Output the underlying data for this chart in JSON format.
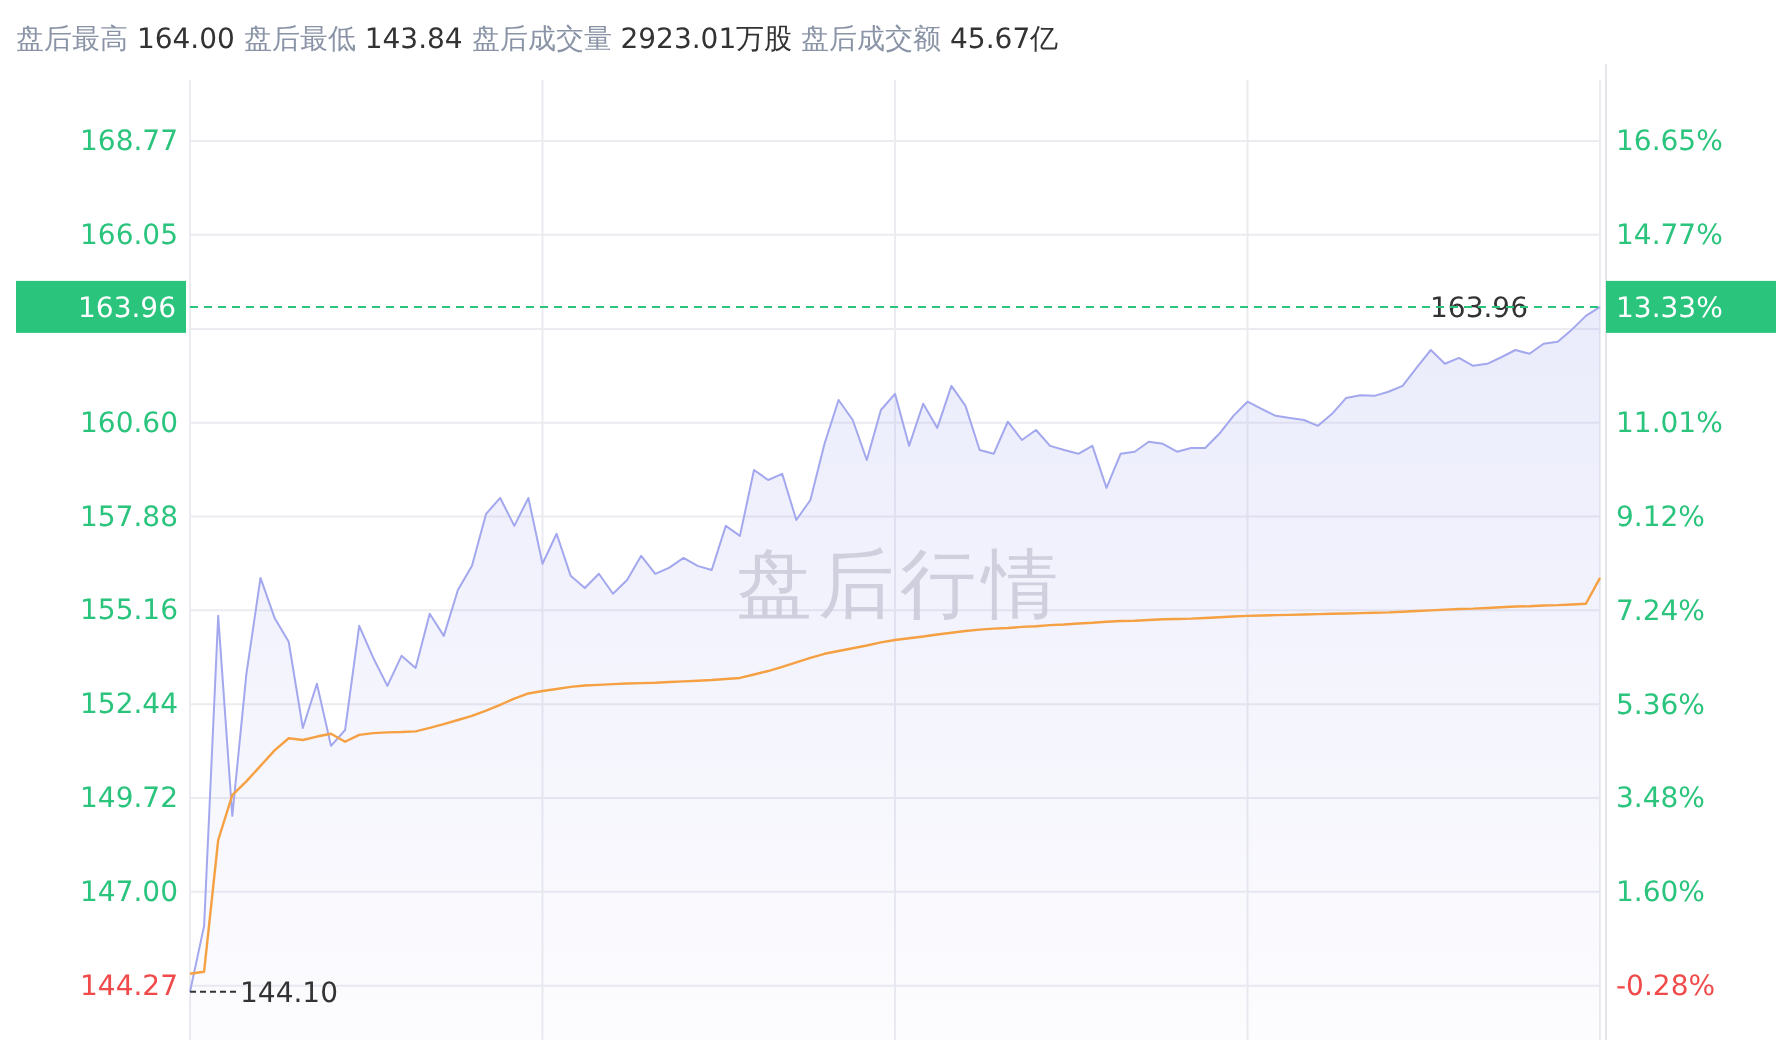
{
  "chart_data": {
    "type": "area",
    "title": "盘后最高 164.00 盘后最低 143.84 盘后成交量 2923.01万股 盘后成交额 45.67亿",
    "categories": [
      null,
      null,
      null,
      null,
      null,
      null,
      null,
      null,
      null,
      null,
      null,
      null,
      null,
      null,
      null,
      null,
      null,
      null,
      null,
      null,
      null,
      null,
      null,
      null,
      null,
      null,
      null,
      null,
      null,
      null,
      null,
      null,
      null,
      null,
      null,
      null,
      null,
      null,
      null,
      null,
      null,
      null,
      null,
      null,
      null,
      null,
      null,
      null,
      null,
      null,
      null,
      null,
      null,
      null,
      null,
      null,
      null,
      null,
      null,
      null,
      null,
      null,
      null,
      null,
      null,
      null,
      null,
      null,
      null,
      null,
      null,
      null,
      null,
      null,
      null,
      null,
      null,
      null,
      null,
      null,
      null,
      null,
      null,
      null,
      null,
      null,
      null,
      null,
      null,
      null,
      null,
      null,
      null,
      null,
      null,
      null,
      null,
      null,
      null,
      null,
      null
    ],
    "ylim": [
      142.7,
      170.54
    ],
    "yticks": [
      144.27,
      {
        "value": 147,
        "label": "147.00"
      },
      149.72,
      152.44,
      155.16,
      157.88,
      {
        "value": 160.6,
        "label": "160.60"
      },
      {
        "value": 163.32,
        "label": null
      },
      166.05,
      168.77
    ],
    "y2lim": [
      -1.36,
      17.88
    ],
    "y2ticks": [
      {
        "value": -0.28,
        "label": "-0.28%"
      },
      {
        "value": 1.6,
        "label": "1.60%"
      },
      {
        "value": 3.48,
        "label": "3.48%"
      },
      {
        "value": 5.36,
        "label": "5.36%"
      },
      {
        "value": 7.24,
        "label": "7.24%"
      },
      {
        "value": 9.12,
        "label": "9.12%"
      },
      {
        "value": 11.01,
        "label": "11.01%"
      },
      {
        "value": 12.89,
        "label": null
      },
      {
        "value": 14.77,
        "label": "14.77%"
      },
      {
        "value": 16.65,
        "label": "16.65%"
      }
    ],
    "grid": true,
    "series": [
      {
        "color": "#a3a8ee",
        "values": [
          144.1,
          146.01,
          155.0,
          149.2,
          153.32,
          156.1,
          154.94,
          154.25,
          151.75,
          153.03,
          151.23,
          151.69,
          154.71,
          153.78,
          152.97,
          153.84,
          153.49,
          155.06,
          154.42,
          155.75,
          156.45,
          157.96,
          158.42,
          157.61,
          158.42,
          156.51,
          157.38,
          156.16,
          155.81,
          156.22,
          155.64,
          156.04,
          156.74,
          156.22,
          156.4,
          156.68,
          156.45,
          156.33,
          157.61,
          157.32,
          159.23,
          158.94,
          159.12,
          157.78,
          158.36,
          159.99,
          161.26,
          160.68,
          159.52,
          160.97,
          161.44,
          159.93,
          161.15,
          160.45,
          161.67,
          161.09,
          159.81,
          159.7,
          160.63,
          160.1,
          160.39,
          159.93,
          159.81,
          159.7,
          159.93,
          158.71,
          159.7,
          159.76,
          160.05,
          159.99,
          159.76,
          159.87,
          159.87,
          160.28,
          160.8,
          161.21,
          161.0,
          160.8,
          160.74,
          160.68,
          160.51,
          160.86,
          161.32,
          161.4,
          161.38,
          161.5,
          161.67,
          162.2,
          162.71,
          162.31,
          162.48,
          162.25,
          162.31,
          162.5,
          162.71,
          162.6,
          162.89,
          162.95,
          163.3,
          163.7,
          163.96
        ]
      },
      {
        "type": "line",
        "color": "#f5a042",
        "values": [
          144.62,
          144.68,
          148.5,
          149.8,
          150.2,
          150.65,
          151.1,
          151.45,
          151.4,
          151.5,
          151.58,
          151.35,
          151.55,
          151.6,
          151.62,
          151.63,
          151.65,
          151.75,
          151.86,
          151.98,
          152.1,
          152.25,
          152.42,
          152.6,
          152.75,
          152.82,
          152.88,
          152.94,
          152.98,
          153.0,
          153.02,
          153.04,
          153.05,
          153.06,
          153.08,
          153.1,
          153.12,
          153.14,
          153.17,
          153.2,
          153.3,
          153.4,
          153.52,
          153.65,
          153.78,
          153.9,
          153.98,
          154.06,
          154.14,
          154.23,
          154.3,
          154.35,
          154.4,
          154.46,
          154.51,
          154.56,
          154.6,
          154.63,
          154.65,
          154.68,
          154.7,
          154.73,
          154.75,
          154.78,
          154.8,
          154.83,
          154.85,
          154.86,
          154.88,
          154.9,
          154.91,
          154.92,
          154.94,
          154.96,
          154.98,
          155.0,
          155.01,
          155.02,
          155.03,
          155.04,
          155.05,
          155.06,
          155.07,
          155.08,
          155.09,
          155.1,
          155.12,
          155.14,
          155.16,
          155.18,
          155.2,
          155.21,
          155.23,
          155.25,
          155.27,
          155.28,
          155.3,
          155.31,
          155.33,
          155.35,
          156.1
        ]
      }
    ],
    "ref_lines": [
      {
        "axis": "y",
        "value": 163.96,
        "label": "163.96",
        "color": "#2bc47d",
        "line_style": "dashed"
      }
    ],
    "annotations": [
      "144.10",
      {
        "text": "163.96",
        "y": 163.96
      },
      "盘后行情",
      "13.33%"
    ]
  }
}
